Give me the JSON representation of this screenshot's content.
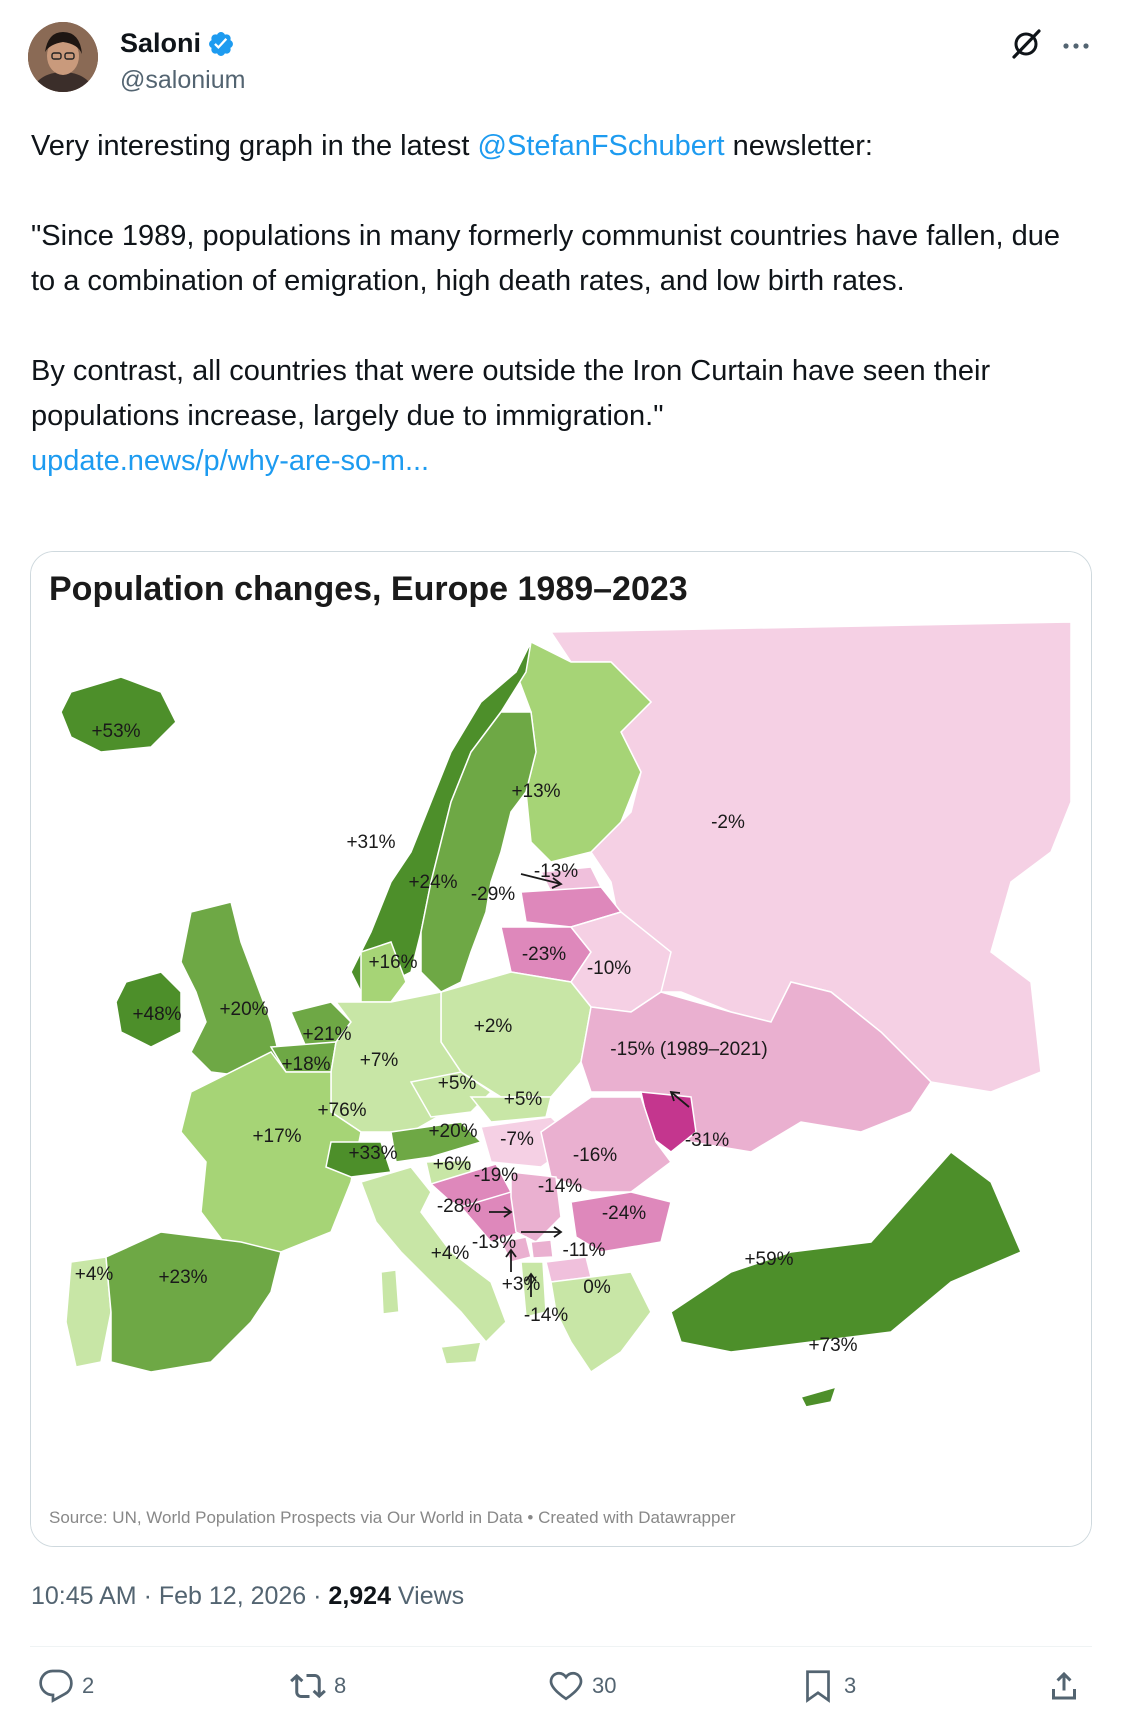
{
  "author": {
    "display_name": "Saloni",
    "handle": "@salonium"
  },
  "tweet": {
    "line1_pre": "Very interesting graph in the latest ",
    "line1_mention": "@StefanFSchubert",
    "line1_post": " newsletter:",
    "para2": "\"Since 1989, populations in many formerly communist countries have fallen, due to a combination of emigration, high death rates, and low birth rates.",
    "para3": "By contrast, all countries that were outside the Iron Curtain have seen their populations increase, largely due to immigration.\"",
    "link_text": "update.news/p/why-are-so-m..."
  },
  "chart_data": {
    "type": "choropleth map",
    "title": "Population changes, Europe 1989–2023",
    "source": "Source: UN, World Population Prospects via Our World in Data • Created with Datawrapper",
    "colors": {
      "strong_green": "#4d8f2a",
      "mid_green": "#6ea845",
      "light_green": "#a6d476",
      "pale_green": "#c8e6a6",
      "pale_pink": "#f5d0e4",
      "light_pink": "#eab0d0",
      "mid_pink": "#de88bb",
      "dark_pink": "#c4368e"
    },
    "regions": [
      {
        "country": "Iceland",
        "label": "+53%",
        "value": 53
      },
      {
        "country": "Norway",
        "label": "+31%",
        "value": 31
      },
      {
        "country": "Sweden",
        "label": "+24%",
        "value": 24
      },
      {
        "country": "Finland",
        "label": "+13%",
        "value": 13
      },
      {
        "country": "Russia",
        "label": "-2%",
        "value": -2
      },
      {
        "country": "Estonia",
        "label": "-13%",
        "value": -13
      },
      {
        "country": "Latvia",
        "label": "-29%",
        "value": -29
      },
      {
        "country": "Lithuania",
        "label": "-23%",
        "value": -23
      },
      {
        "country": "Belarus",
        "label": "-10%",
        "value": -10
      },
      {
        "country": "Denmark",
        "label": "+16%",
        "value": 16
      },
      {
        "country": "Ireland",
        "label": "+48%",
        "value": 48
      },
      {
        "country": "United Kingdom",
        "label": "+20%",
        "value": 20
      },
      {
        "country": "Netherlands",
        "label": "+21%",
        "value": 21
      },
      {
        "country": "Belgium",
        "label": "+18%",
        "value": 18
      },
      {
        "country": "Germany",
        "label": "+7%",
        "value": 7
      },
      {
        "country": "Poland",
        "label": "+2%",
        "value": 2
      },
      {
        "country": "Ukraine",
        "label": "-15% (1989–2021)",
        "value": -15
      },
      {
        "country": "Luxembourg",
        "label": "+76%",
        "value": 76
      },
      {
        "country": "Czechia",
        "label": "+5%",
        "value": 5
      },
      {
        "country": "Slovakia",
        "label": "+5%",
        "value": 5
      },
      {
        "country": "France",
        "label": "+17%",
        "value": 17
      },
      {
        "country": "Austria",
        "label": "+20%",
        "value": 20
      },
      {
        "country": "Hungary",
        "label": "-7%",
        "value": -7
      },
      {
        "country": "Moldova",
        "label": "-31%",
        "value": -31
      },
      {
        "country": "Switzerland",
        "label": "+33%",
        "value": 33
      },
      {
        "country": "Slovenia",
        "label": "+6%",
        "value": 6
      },
      {
        "country": "Croatia",
        "label": "-19%",
        "value": -19
      },
      {
        "country": "Romania",
        "label": "-16%",
        "value": -16
      },
      {
        "country": "Serbia",
        "label": "-14%",
        "value": -14
      },
      {
        "country": "Bosnia and Herzegovina",
        "label": "-28%",
        "value": -28
      },
      {
        "country": "Bulgaria",
        "label": "-24%",
        "value": -24
      },
      {
        "country": "Montenegro",
        "label": "-13%",
        "value": -13
      },
      {
        "country": "North Macedonia",
        "label": "-11%",
        "value": -11
      },
      {
        "country": "Italy",
        "label": "+4%",
        "value": 4
      },
      {
        "country": "Portugal",
        "label": "+4%",
        "value": 4
      },
      {
        "country": "Spain",
        "label": "+23%",
        "value": 23
      },
      {
        "country": "Turkey",
        "label": "+59%",
        "value": 59
      },
      {
        "country": "Albania",
        "label": "+3%",
        "value": 3
      },
      {
        "country": "Greece",
        "label": "0%",
        "value": 0
      },
      {
        "country": "Kosovo",
        "label": "-14%",
        "value": -14
      },
      {
        "country": "Cyprus",
        "label": "+73%",
        "value": 73
      }
    ]
  },
  "meta": {
    "time": "10:45 AM",
    "separator": " · ",
    "date": "Feb 12, 2026",
    "views_count": "2,924",
    "views_label": " Views"
  },
  "actions": {
    "replies": "2",
    "reposts": "8",
    "likes": "30",
    "bookmarks": "3"
  }
}
